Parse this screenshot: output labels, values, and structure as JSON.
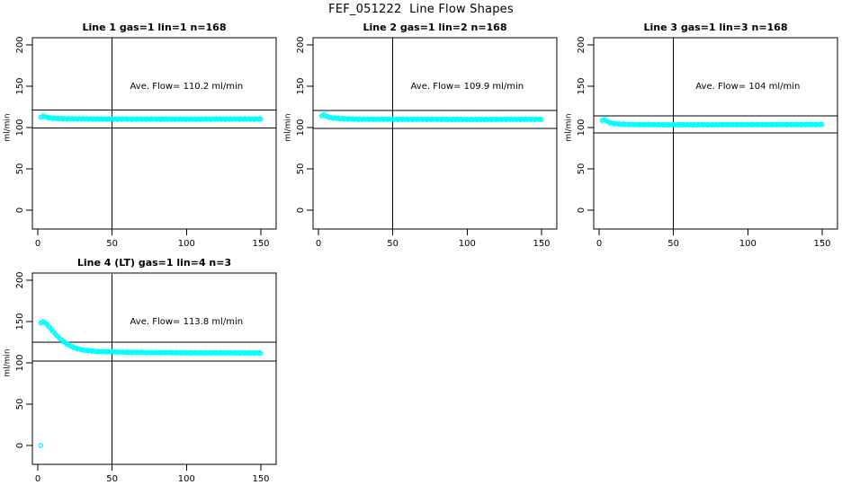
{
  "page": {
    "title": "FEF_051222  Line Flow Shapes"
  },
  "colors": {
    "marker": "#00FFFF",
    "axis": "#000000",
    "background": "#FFFFFF"
  },
  "chart_data": [
    {
      "type": "scatter",
      "title": "Line 1 gas=1 lin=1 n=168",
      "annotation": "Ave. Flow=  110.2  ml/min",
      "ave_flow_ml_min": 110.2,
      "n": 168,
      "xlabel": "",
      "ylabel": "ml/min",
      "xlim": [
        0,
        150
      ],
      "ylim": [
        0,
        200
      ],
      "xticks": [
        0,
        50,
        100,
        150
      ],
      "yticks": [
        0,
        50,
        100,
        150,
        200
      ],
      "vline_x": 50,
      "hlines_y": [
        121.2,
        99.2
      ],
      "marker": "open-circle",
      "keypoints": [
        [
          2,
          112.5
        ],
        [
          3.5,
          114
        ],
        [
          5,
          113
        ],
        [
          7,
          112
        ],
        [
          10,
          111.3
        ],
        [
          15,
          110.8
        ],
        [
          25,
          110.5
        ],
        [
          50,
          110.3
        ],
        [
          100,
          110.2
        ],
        [
          150,
          110.4
        ]
      ],
      "outliers": []
    },
    {
      "type": "scatter",
      "title": "Line 2 gas=1 lin=2 n=168",
      "annotation": "Ave. Flow=  109.9  ml/min",
      "ave_flow_ml_min": 109.9,
      "n": 168,
      "xlabel": "",
      "ylabel": "ml/min",
      "xlim": [
        0,
        150
      ],
      "ylim": [
        0,
        200
      ],
      "xticks": [
        0,
        50,
        100,
        150
      ],
      "yticks": [
        0,
        50,
        100,
        150,
        200
      ],
      "vline_x": 50,
      "hlines_y": [
        120.9,
        98.9
      ],
      "marker": "open-circle",
      "keypoints": [
        [
          2,
          114
        ],
        [
          3.5,
          115.5
        ],
        [
          5,
          114
        ],
        [
          7,
          112.5
        ],
        [
          10,
          111.5
        ],
        [
          15,
          110.8
        ],
        [
          25,
          110.2
        ],
        [
          50,
          110
        ],
        [
          100,
          109.8
        ],
        [
          150,
          110
        ]
      ],
      "outliers": []
    },
    {
      "type": "scatter",
      "title": "Line 3 gas=1 lin=3 n=168",
      "annotation": "Ave. Flow=  104  ml/min",
      "ave_flow_ml_min": 104,
      "n": 168,
      "xlabel": "",
      "ylabel": "ml/min",
      "xlim": [
        0,
        150
      ],
      "ylim": [
        0,
        200
      ],
      "xticks": [
        0,
        50,
        100,
        150
      ],
      "yticks": [
        0,
        50,
        100,
        150,
        200
      ],
      "vline_x": 50,
      "hlines_y": [
        114.4,
        93.6
      ],
      "marker": "open-circle",
      "keypoints": [
        [
          2,
          108.5
        ],
        [
          3.5,
          110
        ],
        [
          5,
          108
        ],
        [
          7,
          106
        ],
        [
          10,
          104.8
        ],
        [
          15,
          104
        ],
        [
          25,
          103.6
        ],
        [
          50,
          103.4
        ],
        [
          100,
          103.5
        ],
        [
          150,
          103.8
        ]
      ],
      "outliers": []
    },
    {
      "type": "scatter",
      "title": "Line 4 (LT) gas=1 lin=4 n=3",
      "annotation": "Ave. Flow=  113.8  ml/min",
      "ave_flow_ml_min": 113.8,
      "n": 3,
      "xlabel": "",
      "ylabel": "ml/min",
      "xlim": [
        0,
        150
      ],
      "ylim": [
        0,
        200
      ],
      "xticks": [
        0,
        50,
        100,
        150
      ],
      "yticks": [
        0,
        50,
        100,
        150,
        200
      ],
      "vline_x": 50,
      "hlines_y": [
        125.2,
        102.4
      ],
      "marker": "open-circle",
      "keypoints": [
        [
          2,
          148
        ],
        [
          3.5,
          150
        ],
        [
          5,
          148.5
        ],
        [
          8,
          143
        ],
        [
          12,
          134.5
        ],
        [
          16,
          127.5
        ],
        [
          20,
          122.5
        ],
        [
          25,
          118
        ],
        [
          30,
          115.5
        ],
        [
          40,
          113.8
        ],
        [
          60,
          112.8
        ],
        [
          100,
          112.2
        ],
        [
          150,
          112
        ]
      ],
      "outliers": [
        [
          2,
          0
        ]
      ]
    }
  ]
}
